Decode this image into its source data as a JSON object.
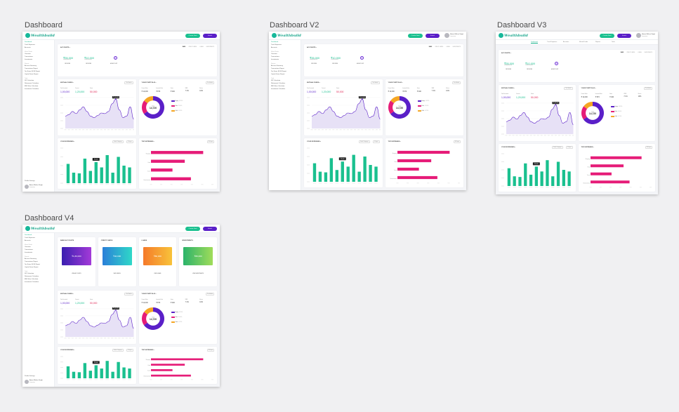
{
  "frames": [
    {
      "title": "Dashboard",
      "variant": "v1"
    },
    {
      "title": "Dashboard V2",
      "variant": "v2"
    },
    {
      "title": "Dashboard V3",
      "variant": "v3"
    },
    {
      "title": "Dashboard V4",
      "variant": "v4"
    }
  ],
  "brand": {
    "logo_text": "Wealthbuild",
    "primary": "#5a1fc8",
    "accent": "#1ac08f",
    "pink": "#e61c78",
    "orange": "#f5a623"
  },
  "header": {
    "btn_green": "Create Goal",
    "btn_purple": "Invest",
    "user_name": "Aarav Mehra Singh",
    "user_sub": "Investor"
  },
  "sidebar": {
    "groups": [
      {
        "label": "",
        "items": [
          "Dashboard",
          "Track Expenses",
          "Accounts"
        ]
      },
      {
        "label": "Mutual Funds",
        "items": [
          "Overview",
          "Transactions",
          "Investments"
        ]
      },
      {
        "label": "Reports",
        "items": [
          "Account Summary",
          "Transactions Report",
          "Tax Saver ELSS Report",
          "Capital Gains Report"
        ]
      },
      {
        "label": "Tools",
        "items": [
          "SIP Calculator",
          "Retirement Calculator",
          "EMI Value Calculator",
          "Investment Calculator"
        ]
      }
    ],
    "profile_label": "Profile Settings"
  },
  "v3_tabs": [
    "Dashboard",
    "Track Expenses",
    "Accounts",
    "Mutual Funds",
    "Reports",
    "Tools"
  ],
  "accounts": {
    "title": "ACCOUNTS",
    "tabs": [
      "BANK",
      "CREDIT CARDS",
      "LOANS",
      "INVESTMENTS"
    ],
    "items": [
      {
        "value": "₹35,000",
        "sub": "Savings Account",
        "link": "VIEW MORE"
      },
      {
        "value": "₹10,000",
        "sub": "Current Account",
        "link": "VIEW MORE"
      }
    ],
    "add_label": "ADD ACCOUNT"
  },
  "v4_accounts": [
    {
      "title": "BANK ACCOUNTS",
      "value": "₹1,80,000",
      "link": "VIEW ACCOUNTS",
      "from": "#3a1fb0",
      "to": "#a33ad8"
    },
    {
      "title": "CREDIT CARDS",
      "value": "₹40,000",
      "link": "VIEW CARDS",
      "from": "#2b7fd8",
      "to": "#2fd8c8"
    },
    {
      "title": "LOANS",
      "value": "₹80,000",
      "link": "VIEW LOANS",
      "from": "#f57a2a",
      "to": "#f8c33a"
    },
    {
      "title": "INVESTMENTS",
      "value": "₹80,000",
      "link": "VIEW INVESTMENTS",
      "from": "#2bb36a",
      "to": "#a0dc5a"
    }
  ],
  "mf": {
    "title": "MUTUAL FUNDS",
    "select": "This Month",
    "stats": [
      {
        "label": "Total Invested",
        "value": "1,00,000"
      },
      {
        "label": "Current",
        "value": "1,20,000"
      },
      {
        "label": "Gains",
        "value": "50,000"
      }
    ],
    "tooltip": "₹1,00,000"
  },
  "portfolio": {
    "title": "YOUR PORTFOLIO",
    "select": "This Month",
    "stats": [
      {
        "label": "Current Value",
        "value": "₹ 12,000"
      },
      {
        "label": "Invested Value",
        "value": "₹ 870"
      },
      {
        "label": "Gains",
        "value": "₹ 400"
      },
      {
        "label": "XIRR",
        "value": "7.1%"
      },
      {
        "label": "Return",
        "value": "10%"
      }
    ],
    "center_label": "Total",
    "center_value": "14,720",
    "legend": [
      {
        "label": "Equity",
        "pct": "65.24%",
        "color": "#5a1fc8"
      },
      {
        "label": "Debt",
        "pct": "20.00%",
        "color": "#e61c78"
      },
      {
        "label": "Gold",
        "pct": "14.76%",
        "color": "#f5a623"
      }
    ]
  },
  "expenses": {
    "title": "YOUR EXPENSES",
    "select1": "Select Category",
    "select2": "4 Days",
    "tooltip": "₹5,000"
  },
  "top_expenses": {
    "title": "TOP EXPENSES",
    "select": "30 Days",
    "categories": [
      "Shopping",
      "Food",
      "Travel",
      "Entertainment"
    ]
  },
  "chart_data": [
    {
      "type": "area",
      "title": "MUTUAL FUNDS",
      "x": [
        "1",
        "2",
        "3",
        "4",
        "5",
        "6",
        "7",
        "8",
        "9",
        "10",
        "11",
        "12",
        "13",
        "14",
        "15",
        "16",
        "17",
        "18",
        "19",
        "20"
      ],
      "values": [
        40,
        45,
        55,
        48,
        60,
        70,
        55,
        40,
        35,
        42,
        50,
        48,
        55,
        80,
        95,
        60,
        35,
        40,
        70,
        30
      ],
      "ylim": [
        0,
        100
      ]
    },
    {
      "type": "pie",
      "title": "YOUR PORTFOLIO",
      "categories": [
        "Equity",
        "Debt",
        "Gold"
      ],
      "values": [
        65.24,
        20.0,
        14.76
      ]
    },
    {
      "type": "bar",
      "title": "YOUR EXPENSES",
      "categories": [
        "1",
        "2",
        "3",
        "4",
        "5",
        "6",
        "7",
        "8",
        "9",
        "10",
        "11",
        "12"
      ],
      "values": [
        55,
        30,
        28,
        70,
        35,
        60,
        45,
        80,
        30,
        75,
        50,
        45
      ],
      "ylim": [
        0,
        100
      ]
    },
    {
      "type": "bar",
      "title": "TOP EXPENSES",
      "categories": [
        "Shopping",
        "Food",
        "Travel",
        "Entertainment"
      ],
      "values": [
        85,
        55,
        35,
        65
      ],
      "xlim": [
        0,
        100
      ]
    }
  ]
}
